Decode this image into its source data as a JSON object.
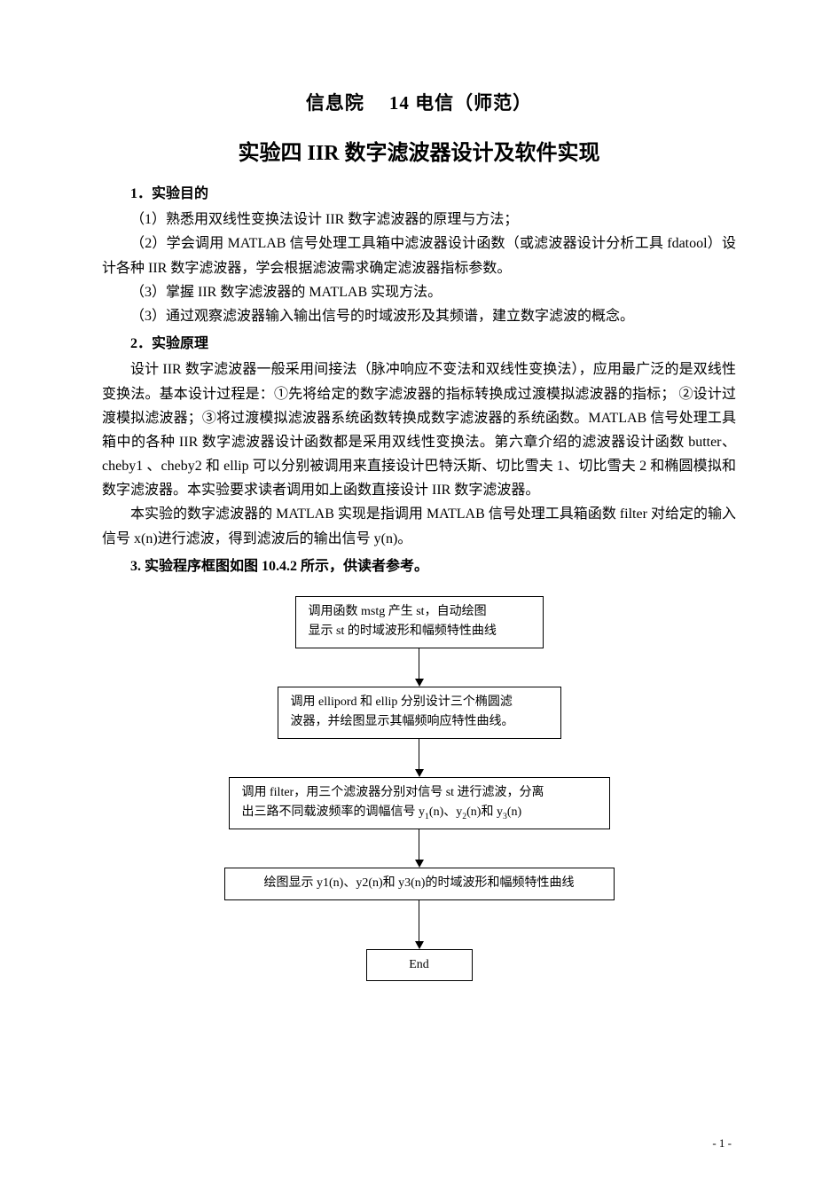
{
  "header": {
    "left": "信息院",
    "right": "14 电信（师范）"
  },
  "title": "实验四  IIR 数字滤波器设计及软件实现",
  "section1": {
    "head": "1．实验目的",
    "p1": "（1）熟悉用双线性变换法设计 IIR 数字滤波器的原理与方法；",
    "p2": "（2）学会调用 MATLAB 信号处理工具箱中滤波器设计函数（或滤波器设计分析工具 fdatool）设计各种 IIR 数字滤波器，学会根据滤波需求确定滤波器指标参数。",
    "p3": "（3）掌握 IIR 数字滤波器的 MATLAB 实现方法。",
    "p4": "（3）通过观察滤波器输入输出信号的时域波形及其频谱，建立数字滤波的概念。"
  },
  "section2": {
    "head": "2．实验原理",
    "p1": "设计 IIR 数字滤波器一般采用间接法（脉冲响应不变法和双线性变换法），应用最广泛的是双线性变换法。基本设计过程是：①先将给定的数字滤波器的指标转换成过渡模拟滤波器的指标； ②设计过渡模拟滤波器；③将过渡模拟滤波器系统函数转换成数字滤波器的系统函数。MATLAB 信号处理工具箱中的各种 IIR 数字滤波器设计函数都是采用双线性变换法。第六章介绍的滤波器设计函数 butter、cheby1 、cheby2 和 ellip 可以分别被调用来直接设计巴特沃斯、切比雪夫 1、切比雪夫 2 和椭圆模拟和数字滤波器。本实验要求读者调用如上函数直接设计 IIR 数字滤波器。",
    "p2": "本实验的数字滤波器的 MATLAB 实现是指调用 MATLAB 信号处理工具箱函数 filter 对给定的输入信号 x(n)进行滤波，得到滤波后的输出信号 y(n)。"
  },
  "section3": {
    "head": "3. 实验程序框图如图 10.4.2 所示，供读者参考。"
  },
  "flow": {
    "box1_l1": "调用函数 mstg 产生 st，自动绘图",
    "box1_l2": "显示 st 的时域波形和幅频特性曲线",
    "box2_l1": "调用 ellipord 和 ellip 分别设计三个椭圆滤",
    "box2_l2": "波器，并绘图显示其幅频响应特性曲线。",
    "box3_l1": "调用 filter，用三个滤波器分别对信号 st 进行滤波，分离",
    "box3_l2_prefix": "出三路不同载波频率的调幅信号 y",
    "box3_l2_mid1": "(n)、y",
    "box3_l2_mid2": "(n)和 y",
    "box3_l2_suffix": "(n)",
    "box4": "绘图显示 y1(n)、y2(n)和 y3(n)的时域波形和幅频特性曲线",
    "box5": "End",
    "box_widths": {
      "b1": 280,
      "b2": 320,
      "b3": 430,
      "b4": 440,
      "b5": 120
    },
    "arrow_heights": {
      "a1": 34,
      "a2": 34,
      "a3": 34,
      "a4": 46
    },
    "colors": {
      "border": "#000000",
      "text": "#000000",
      "bg": "#ffffff"
    },
    "fontsize": 14
  },
  "page_number": "- 1 -"
}
